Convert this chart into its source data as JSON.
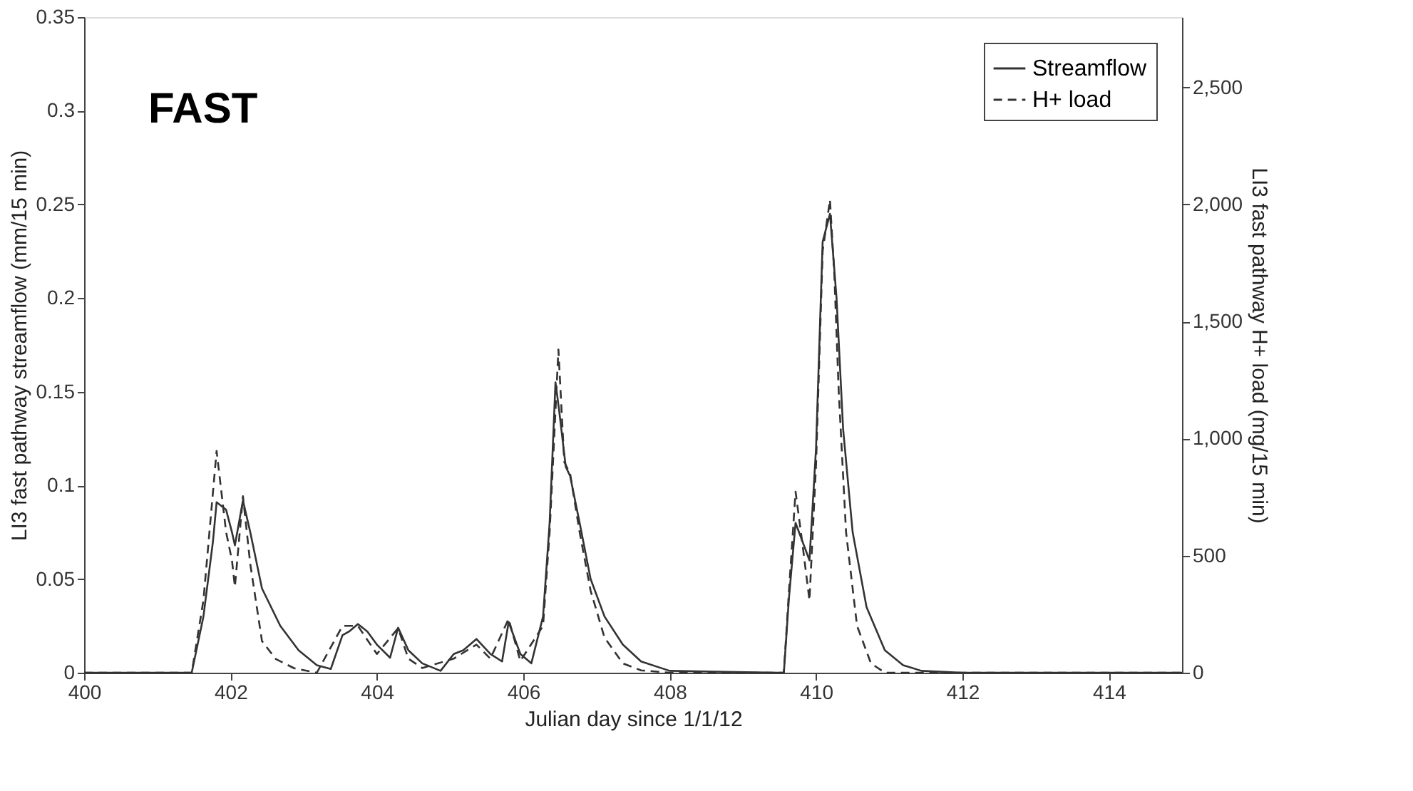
{
  "chart_data": {
    "type": "line",
    "xlabel": "Julian day since 1/1/12",
    "ylabel": "LI3 fast pathway streamflow (mm/15 min)",
    "y2label": "LI3 fast pathway H+ load (mg/15 min)",
    "annotations": [
      "FAST"
    ],
    "xlim": [
      400,
      415
    ],
    "xticks": [
      400,
      402,
      404,
      406,
      408,
      410,
      412,
      414
    ],
    "ylim": [
      0,
      0.35
    ],
    "yticks": [
      0,
      0.05,
      0.1,
      0.15,
      0.2,
      0.25,
      0.3,
      0.35
    ],
    "y2lim": [
      0,
      2800
    ],
    "y2ticks": [
      0,
      500,
      {
        "value": 1000,
        "label": "1,000"
      },
      {
        "value": 1500,
        "label": "1,500"
      },
      {
        "value": 2000,
        "label": "2,000"
      },
      {
        "value": 2500,
        "label": "2,500"
      }
    ],
    "grid": false,
    "legend": "top right",
    "series": [
      {
        "name": "Streamflow",
        "color": "#333333",
        "line_style": "solid",
        "x": [
          400,
          401.47,
          401.63,
          401.76,
          401.81,
          401.94,
          402.02,
          402.06,
          402.17,
          402.27,
          402.43,
          402.68,
          402.93,
          403.18,
          403.37,
          403.53,
          403.62,
          403.74,
          403.87,
          404.0,
          404.18,
          404.29,
          404.43,
          404.62,
          404.87,
          405.05,
          405.18,
          405.36,
          405.55,
          405.71,
          405.8,
          405.96,
          406.11,
          406.27,
          406.36,
          406.44,
          406.49,
          406.58,
          406.64,
          406.77,
          406.92,
          407.11,
          407.36,
          407.61,
          408.0,
          409.5,
          409.56,
          409.63,
          409.72,
          409.91,
          410.0,
          410.09,
          410.19,
          410.28,
          410.37,
          410.5,
          410.69,
          410.94,
          411.19,
          411.44,
          412,
          415
        ],
        "values": [
          0,
          0,
          0.03,
          0.07,
          0.091,
          0.087,
          0.075,
          0.068,
          0.092,
          0.075,
          0.045,
          0.025,
          0.012,
          0.004,
          0.002,
          0.02,
          0.022,
          0.026,
          0.022,
          0.015,
          0.008,
          0.024,
          0.012,
          0.005,
          0.001,
          0.01,
          0.012,
          0.018,
          0.01,
          0.006,
          0.027,
          0.01,
          0.005,
          0.03,
          0.08,
          0.155,
          0.14,
          0.11,
          0.105,
          0.08,
          0.05,
          0.03,
          0.015,
          0.006,
          0.001,
          0,
          0,
          0.04,
          0.08,
          0.06,
          0.12,
          0.23,
          0.245,
          0.2,
          0.13,
          0.075,
          0.035,
          0.012,
          0.004,
          0.001,
          0,
          0
        ]
      },
      {
        "name": "H+ load",
        "color": "#333333",
        "line_style": "dashed",
        "axis": "y2",
        "x": [
          400,
          401.47,
          401.63,
          401.81,
          401.94,
          402.02,
          402.06,
          402.17,
          402.27,
          402.43,
          402.62,
          402.87,
          403.18,
          403.53,
          403.74,
          404.0,
          404.29,
          404.43,
          404.62,
          405.05,
          405.36,
          405.55,
          405.8,
          405.96,
          406.27,
          406.36,
          406.48,
          406.56,
          406.64,
          406.77,
          406.92,
          407.11,
          407.36,
          407.61,
          408.0,
          409.5,
          409.56,
          409.63,
          409.72,
          409.81,
          409.91,
          410.0,
          410.09,
          410.19,
          410.25,
          410.31,
          410.41,
          410.56,
          410.75,
          410.94,
          412,
          415
        ],
        "values": [
          0,
          0,
          309,
          947,
          600,
          480,
          367,
          754,
          464,
          135,
          58,
          19,
          0,
          200,
          200,
          80,
          190,
          60,
          20,
          60,
          120,
          60,
          230,
          50,
          200,
          600,
          1380,
          900,
          850,
          600,
          350,
          150,
          40,
          10,
          0,
          0,
          0,
          350,
          773,
          560,
          309,
          889,
          1800,
          2020,
          1700,
          1200,
          600,
          200,
          40,
          0,
          0,
          0
        ]
      }
    ]
  }
}
